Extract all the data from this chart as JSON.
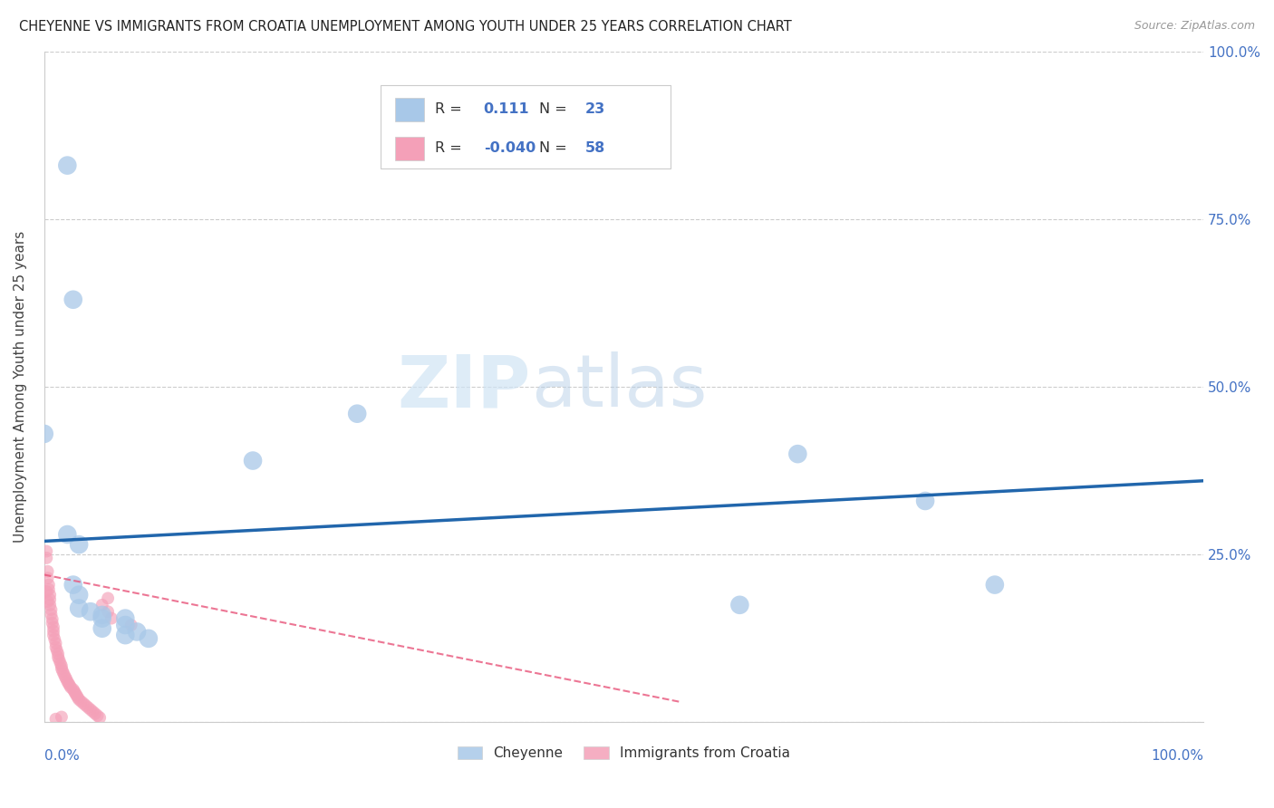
{
  "title": "CHEYENNE VS IMMIGRANTS FROM CROATIA UNEMPLOYMENT AMONG YOUTH UNDER 25 YEARS CORRELATION CHART",
  "source": "Source: ZipAtlas.com",
  "ylabel": "Unemployment Among Youth under 25 years",
  "cheyenne_R": 0.111,
  "cheyenne_N": 23,
  "croatia_R": -0.04,
  "croatia_N": 58,
  "cheyenne_color": "#a8c8e8",
  "croatia_color": "#f4a0b8",
  "cheyenne_line_color": "#2166ac",
  "croatia_line_color": "#e8547a",
  "watermark_zip": "ZIP",
  "watermark_atlas": "atlas",
  "xlim": [
    0,
    1.0
  ],
  "ylim": [
    0,
    1.0
  ],
  "cheyenne_line_x0": 0.0,
  "cheyenne_line_y0": 0.27,
  "cheyenne_line_x1": 1.0,
  "cheyenne_line_y1": 0.36,
  "croatia_line_x0": 0.0,
  "croatia_line_y0": 0.22,
  "croatia_line_x1": 0.55,
  "croatia_line_y1": 0.03,
  "cheyenne_points": [
    [
      0.02,
      0.83
    ],
    [
      0.025,
      0.63
    ],
    [
      0.0,
      0.43
    ],
    [
      0.27,
      0.46
    ],
    [
      0.18,
      0.39
    ],
    [
      0.02,
      0.28
    ],
    [
      0.03,
      0.265
    ],
    [
      0.65,
      0.4
    ],
    [
      0.76,
      0.33
    ],
    [
      0.82,
      0.205
    ],
    [
      0.6,
      0.175
    ],
    [
      0.025,
      0.205
    ],
    [
      0.03,
      0.19
    ],
    [
      0.03,
      0.17
    ],
    [
      0.04,
      0.165
    ],
    [
      0.05,
      0.16
    ],
    [
      0.05,
      0.155
    ],
    [
      0.05,
      0.14
    ],
    [
      0.07,
      0.155
    ],
    [
      0.07,
      0.145
    ],
    [
      0.07,
      0.13
    ],
    [
      0.08,
      0.135
    ],
    [
      0.09,
      0.125
    ]
  ],
  "croatia_points": [
    [
      0.002,
      0.255
    ],
    [
      0.002,
      0.245
    ],
    [
      0.003,
      0.225
    ],
    [
      0.003,
      0.215
    ],
    [
      0.004,
      0.205
    ],
    [
      0.004,
      0.198
    ],
    [
      0.005,
      0.19
    ],
    [
      0.005,
      0.183
    ],
    [
      0.005,
      0.175
    ],
    [
      0.006,
      0.168
    ],
    [
      0.006,
      0.161
    ],
    [
      0.007,
      0.154
    ],
    [
      0.007,
      0.148
    ],
    [
      0.008,
      0.142
    ],
    [
      0.008,
      0.136
    ],
    [
      0.008,
      0.13
    ],
    [
      0.009,
      0.124
    ],
    [
      0.01,
      0.118
    ],
    [
      0.01,
      0.112
    ],
    [
      0.011,
      0.107
    ],
    [
      0.012,
      0.102
    ],
    [
      0.012,
      0.097
    ],
    [
      0.013,
      0.093
    ],
    [
      0.014,
      0.088
    ],
    [
      0.015,
      0.084
    ],
    [
      0.015,
      0.08
    ],
    [
      0.016,
      0.076
    ],
    [
      0.017,
      0.072
    ],
    [
      0.018,
      0.068
    ],
    [
      0.019,
      0.065
    ],
    [
      0.02,
      0.061
    ],
    [
      0.021,
      0.058
    ],
    [
      0.022,
      0.055
    ],
    [
      0.023,
      0.052
    ],
    [
      0.025,
      0.049
    ],
    [
      0.026,
      0.046
    ],
    [
      0.027,
      0.043
    ],
    [
      0.028,
      0.04
    ],
    [
      0.029,
      0.037
    ],
    [
      0.03,
      0.034
    ],
    [
      0.032,
      0.031
    ],
    [
      0.034,
      0.028
    ],
    [
      0.036,
      0.025
    ],
    [
      0.038,
      0.022
    ],
    [
      0.04,
      0.019
    ],
    [
      0.042,
      0.016
    ],
    [
      0.044,
      0.013
    ],
    [
      0.046,
      0.01
    ],
    [
      0.048,
      0.007
    ],
    [
      0.05,
      0.175
    ],
    [
      0.055,
      0.185
    ],
    [
      0.055,
      0.165
    ],
    [
      0.058,
      0.155
    ],
    [
      0.075,
      0.145
    ],
    [
      0.01,
      0.005
    ],
    [
      0.015,
      0.008
    ],
    [
      0.002,
      0.195
    ],
    [
      0.003,
      0.18
    ]
  ]
}
